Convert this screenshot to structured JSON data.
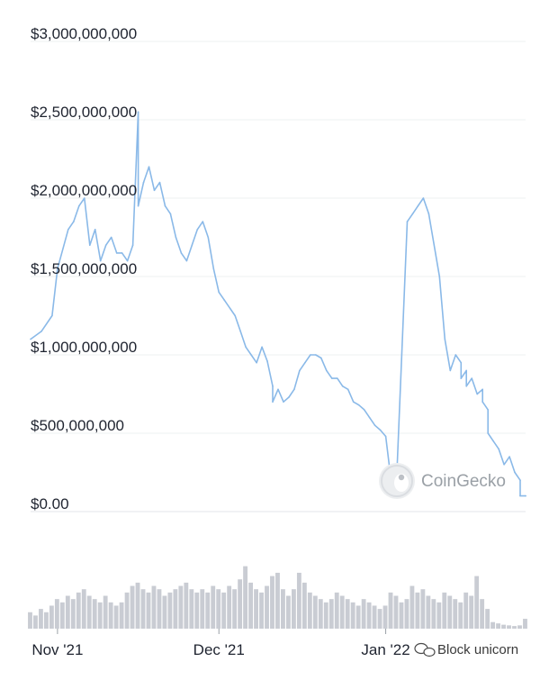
{
  "watermark": {
    "text": "CoinGecko",
    "icon": "gecko-logo-icon"
  },
  "footer": {
    "text": "Block unicorn",
    "icon": "chat-bubble-icon"
  },
  "chart_data": {
    "type": "line",
    "title": "",
    "xlabel": "",
    "ylabel": "",
    "ylim": [
      0,
      3000000000
    ],
    "grid": true,
    "line_color": "#8ab9e8",
    "volume_color": "#c9ccd3",
    "y_ticks": [
      {
        "value": 0,
        "label": "$0.00"
      },
      {
        "value": 500000000,
        "label": "$500,000,000"
      },
      {
        "value": 1000000000,
        "label": "$1,000,000,000"
      },
      {
        "value": 1500000000,
        "label": "$1,500,000,000"
      },
      {
        "value": 2000000000,
        "label": "$2,000,000,000"
      },
      {
        "value": 2500000000,
        "label": "$2,500,000,000"
      },
      {
        "value": 3000000000,
        "label": "$3,000,000,000"
      }
    ],
    "x_ticks": [
      {
        "value": "2021-11-01",
        "label": "Nov '21"
      },
      {
        "value": "2021-12-01",
        "label": "Dec '21"
      },
      {
        "value": "2022-01-01",
        "label": "Jan '22"
      }
    ],
    "x_range": [
      "2021-10-27",
      "2022-01-27"
    ],
    "series": [
      {
        "x": [
          "2021-10-27",
          "2021-10-29",
          "2021-10-31",
          "2021-11-01",
          "2021-11-03",
          "2021-11-04",
          "2021-11-05",
          "2021-11-06",
          "2021-11-07",
          "2021-11-08",
          "2021-11-09",
          "2021-11-10",
          "2021-11-11",
          "2021-11-12",
          "2021-11-13",
          "2021-11-14",
          "2021-11-15",
          "2021-11-16",
          "2021-11-16",
          "2021-11-17",
          "2021-11-18",
          "2021-11-19",
          "2021-11-20",
          "2021-11-21",
          "2021-11-22",
          "2021-11-23",
          "2021-11-24",
          "2021-11-25",
          "2021-11-26",
          "2021-11-27",
          "2021-11-28",
          "2021-11-29",
          "2021-11-30",
          "2021-12-01",
          "2021-12-02",
          "2021-12-04",
          "2021-12-05",
          "2021-12-06",
          "2021-12-07",
          "2021-12-08",
          "2021-12-09",
          "2021-12-10",
          "2021-12-11",
          "2021-12-11",
          "2021-12-12",
          "2021-12-13",
          "2021-12-14",
          "2021-12-15",
          "2021-12-16",
          "2021-12-17",
          "2021-12-18",
          "2021-12-19",
          "2021-12-20",
          "2021-12-21",
          "2021-12-22",
          "2021-12-23",
          "2021-12-24",
          "2021-12-25",
          "2021-12-26",
          "2021-12-27",
          "2021-12-28",
          "2021-12-29",
          "2021-12-30",
          "2021-12-31",
          "2022-01-01",
          "2022-01-02",
          "2022-01-03",
          "2022-01-05",
          "2022-01-06",
          "2022-01-07",
          "2022-01-08",
          "2022-01-09",
          "2022-01-11",
          "2022-01-12",
          "2022-01-13",
          "2022-01-14",
          "2022-01-15",
          "2022-01-15",
          "2022-01-16",
          "2022-01-16",
          "2022-01-17",
          "2022-01-18",
          "2022-01-19",
          "2022-01-19",
          "2022-01-20",
          "2022-01-20",
          "2022-01-21",
          "2022-01-22",
          "2022-01-23",
          "2022-01-24",
          "2022-01-25",
          "2022-01-26",
          "2022-01-26",
          "2022-01-27",
          "2022-01-27"
        ],
        "y": [
          1100000000,
          1150000000,
          1250000000,
          1550000000,
          1800000000,
          1850000000,
          1950000000,
          2000000000,
          1700000000,
          1800000000,
          1600000000,
          1700000000,
          1750000000,
          1650000000,
          1650000000,
          1600000000,
          1700000000,
          2550000000,
          1950000000,
          2100000000,
          2200000000,
          2050000000,
          2100000000,
          1950000000,
          1900000000,
          1750000000,
          1650000000,
          1600000000,
          1700000000,
          1800000000,
          1850000000,
          1750000000,
          1550000000,
          1400000000,
          1350000000,
          1250000000,
          1150000000,
          1050000000,
          1000000000,
          950000000,
          1050000000,
          960000000,
          800000000,
          700000000,
          780000000,
          700000000,
          730000000,
          780000000,
          900000000,
          950000000,
          1000000000,
          1000000000,
          980000000,
          900000000,
          850000000,
          850000000,
          800000000,
          780000000,
          700000000,
          680000000,
          650000000,
          600000000,
          550000000,
          520000000,
          480000000,
          200000000,
          180000000,
          1850000000,
          1900000000,
          1950000000,
          2000000000,
          1900000000,
          1500000000,
          1100000000,
          900000000,
          1000000000,
          950000000,
          850000000,
          900000000,
          800000000,
          850000000,
          750000000,
          780000000,
          700000000,
          650000000,
          500000000,
          450000000,
          400000000,
          300000000,
          350000000,
          250000000,
          200000000,
          100000000,
          100000000,
          100000000
        ]
      }
    ],
    "volume": {
      "x": [
        "2021-10-27",
        "2021-10-28",
        "2021-10-29",
        "2021-10-30",
        "2021-10-31",
        "2021-11-01",
        "2021-11-02",
        "2021-11-03",
        "2021-11-04",
        "2021-11-05",
        "2021-11-06",
        "2021-11-07",
        "2021-11-08",
        "2021-11-09",
        "2021-11-10",
        "2021-11-11",
        "2021-11-12",
        "2021-11-13",
        "2021-11-14",
        "2021-11-15",
        "2021-11-16",
        "2021-11-17",
        "2021-11-18",
        "2021-11-19",
        "2021-11-20",
        "2021-11-21",
        "2021-11-22",
        "2021-11-23",
        "2021-11-24",
        "2021-11-25",
        "2021-11-26",
        "2021-11-27",
        "2021-11-28",
        "2021-11-29",
        "2021-11-30",
        "2021-12-01",
        "2021-12-02",
        "2021-12-03",
        "2021-12-04",
        "2021-12-05",
        "2021-12-06",
        "2021-12-07",
        "2021-12-08",
        "2021-12-09",
        "2021-12-10",
        "2021-12-11",
        "2021-12-12",
        "2021-12-13",
        "2021-12-14",
        "2021-12-15",
        "2021-12-16",
        "2021-12-17",
        "2021-12-18",
        "2021-12-19",
        "2021-12-20",
        "2021-12-21",
        "2021-12-22",
        "2021-12-23",
        "2021-12-24",
        "2021-12-25",
        "2021-12-26",
        "2021-12-27",
        "2021-12-28",
        "2021-12-29",
        "2021-12-30",
        "2021-12-31",
        "2022-01-01",
        "2022-01-02",
        "2022-01-03",
        "2022-01-04",
        "2022-01-05",
        "2022-01-06",
        "2022-01-07",
        "2022-01-08",
        "2022-01-09",
        "2022-01-10",
        "2022-01-11",
        "2022-01-12",
        "2022-01-13",
        "2022-01-14",
        "2022-01-15",
        "2022-01-16",
        "2022-01-17",
        "2022-01-18",
        "2022-01-19",
        "2022-01-20",
        "2022-01-21",
        "2022-01-22",
        "2022-01-23",
        "2022-01-24",
        "2022-01-25",
        "2022-01-26",
        "2022-01-27"
      ],
      "values": [
        0.25,
        0.2,
        0.3,
        0.25,
        0.35,
        0.45,
        0.4,
        0.5,
        0.45,
        0.55,
        0.6,
        0.5,
        0.45,
        0.4,
        0.5,
        0.4,
        0.35,
        0.4,
        0.55,
        0.65,
        0.7,
        0.6,
        0.55,
        0.65,
        0.6,
        0.5,
        0.55,
        0.6,
        0.65,
        0.7,
        0.6,
        0.55,
        0.6,
        0.55,
        0.65,
        0.6,
        0.55,
        0.65,
        0.6,
        0.75,
        0.95,
        0.7,
        0.6,
        0.55,
        0.65,
        0.8,
        0.85,
        0.6,
        0.5,
        0.6,
        0.85,
        0.7,
        0.55,
        0.5,
        0.45,
        0.4,
        0.45,
        0.55,
        0.5,
        0.45,
        0.4,
        0.35,
        0.45,
        0.4,
        0.35,
        0.3,
        0.35,
        0.55,
        0.5,
        0.4,
        0.45,
        0.65,
        0.55,
        0.6,
        0.5,
        0.45,
        0.4,
        0.55,
        0.5,
        0.45,
        0.4,
        0.55,
        0.5,
        0.8,
        0.45,
        0.3,
        0.1,
        0.08,
        0.06,
        0.05,
        0.04,
        0.05,
        0.15
      ]
    }
  }
}
